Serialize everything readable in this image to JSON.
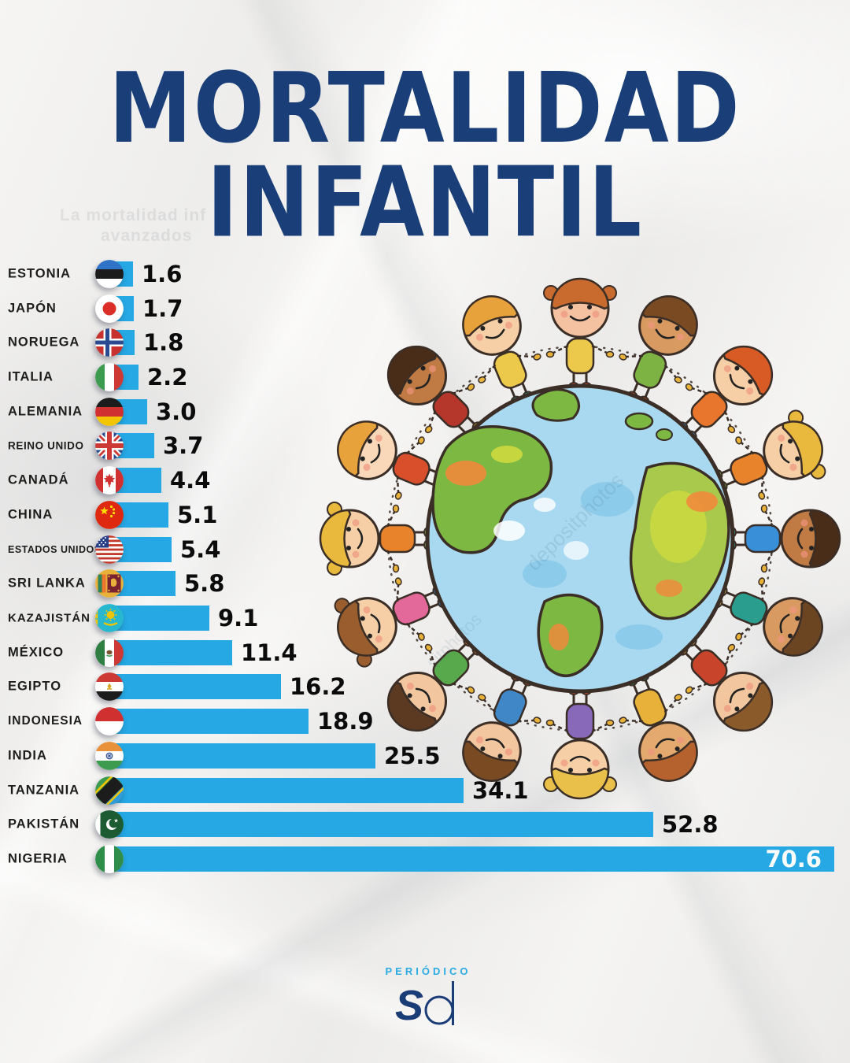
{
  "title": {
    "line1": "MORTALIDAD",
    "line2": "INFANTIL",
    "color": "#1a3f78"
  },
  "background_watermark": {
    "line1": "La mortalidad inf",
    "line2": "avanzados"
  },
  "stock_watermark": {
    "text1": "depositphotos",
    "text2": "sitphotos"
  },
  "chart_data": {
    "type": "bar",
    "orientation": "horizontal",
    "title": "MORTALIDAD INFANTIL",
    "bar_color": "#25a8e3",
    "xlim": [
      0,
      70.6
    ],
    "value_label_color": "#0b0b0b",
    "last_value_label_color": "#ffffff",
    "categories": [
      "ESTONIA",
      "JAPÓN",
      "NORUEGA",
      "ITALIA",
      "ALEMANIA",
      "REINO UNIDO",
      "CANADÁ",
      "CHINA",
      "ESTADOS UNIDOS",
      "SRI LANKA",
      "KAZAJISTÁN",
      "MÉXICO",
      "EGIPTO",
      "INDONESIA",
      "INDIA",
      "TANZANIA",
      "PAKISTÁN",
      "NIGERIA"
    ],
    "values": [
      1.6,
      1.7,
      1.8,
      2.2,
      3.0,
      3.7,
      4.4,
      5.1,
      5.4,
      5.8,
      9.1,
      11.4,
      16.2,
      18.9,
      25.5,
      34.1,
      52.8,
      70.6
    ],
    "rows": [
      {
        "country": "ESTONIA",
        "value": 1.6,
        "label": "1.6",
        "flag": "estonia"
      },
      {
        "country": "JAPÓN",
        "value": 1.7,
        "label": "1.7",
        "flag": "japan"
      },
      {
        "country": "NORUEGA",
        "value": 1.8,
        "label": "1.8",
        "flag": "norway"
      },
      {
        "country": "ITALIA",
        "value": 2.2,
        "label": "2.2",
        "flag": "italy"
      },
      {
        "country": "ALEMANIA",
        "value": 3.0,
        "label": "3.0",
        "flag": "germany"
      },
      {
        "country": "REINO UNIDO",
        "value": 3.7,
        "label": "3.7",
        "flag": "uk"
      },
      {
        "country": "CANADÁ",
        "value": 4.4,
        "label": "4.4",
        "flag": "canada"
      },
      {
        "country": "CHINA",
        "value": 5.1,
        "label": "5.1",
        "flag": "china"
      },
      {
        "country": "ESTADOS UNIDOS",
        "value": 5.4,
        "label": "5.4",
        "flag": "usa"
      },
      {
        "country": "SRI LANKA",
        "value": 5.8,
        "label": "5.8",
        "flag": "sri-lanka"
      },
      {
        "country": "KAZAJISTÁN",
        "value": 9.1,
        "label": "9.1",
        "flag": "kazakhstan"
      },
      {
        "country": "MÉXICO",
        "value": 11.4,
        "label": "11.4",
        "flag": "mexico"
      },
      {
        "country": "EGIPTO",
        "value": 16.2,
        "label": "16.2",
        "flag": "egypt"
      },
      {
        "country": "INDONESIA",
        "value": 18.9,
        "label": "18.9",
        "flag": "indonesia"
      },
      {
        "country": "INDIA",
        "value": 25.5,
        "label": "25.5",
        "flag": "india"
      },
      {
        "country": "TANZANIA",
        "value": 34.1,
        "label": "34.1",
        "flag": "tanzania"
      },
      {
        "country": "PAKISTÁN",
        "value": 52.8,
        "label": "52.8",
        "flag": "pakistan"
      },
      {
        "country": "NIGERIA",
        "value": 70.6,
        "label": "70.6",
        "flag": "nigeria"
      }
    ]
  },
  "footer": {
    "brand": "PERIÓDICO",
    "brand_color": "#2aabe3",
    "mark": "Sd",
    "mark_color": "#1b3d77"
  },
  "illustration": {
    "globe": {
      "ocean": "#a9d9f0",
      "ocean_deep": "#8ccbe9",
      "land_green": "#7db843",
      "land_lime": "#cdd93f",
      "land_orange": "#ef8a3c",
      "outline": "#3a2e26",
      "cloud": "#ffffff"
    },
    "kids": [
      {
        "skin": "#f4c2a0",
        "hair": "#c96a2e",
        "shirt": "#ecc94b",
        "shoe": "#d94f2b",
        "buns": true
      },
      {
        "skin": "#d99a62",
        "hair": "#7a4a22",
        "shirt": "#7cb342",
        "shoe": "#d94f2b",
        "buns": false
      },
      {
        "skin": "#f6cfa6",
        "hair": "#d85a25",
        "shirt": "#e8762c",
        "shoe": "#3a8fd9",
        "buns": false
      },
      {
        "skin": "#f6cfa6",
        "hair": "#e8b93c",
        "shirt": "#e8832c",
        "shoe": "#7cb342",
        "buns": true
      },
      {
        "skin": "#c07a44",
        "hair": "#4a2d18",
        "shirt": "#3a8fd9",
        "shoe": "#2a9d8f",
        "buns": false
      },
      {
        "skin": "#d99a62",
        "hair": "#6b4522",
        "shirt": "#2a9d8f",
        "shoe": "#ecc94b",
        "buns": false
      },
      {
        "skin": "#f2c69e",
        "hair": "#8a5a2b",
        "shirt": "#c8452c",
        "shoe": "#e8b23a",
        "buns": false
      },
      {
        "skin": "#e3a96e",
        "hair": "#b5622f",
        "shirt": "#e8b23a",
        "shoe": "#2f855a",
        "buns": false
      },
      {
        "skin": "#f6cfa6",
        "hair": "#e8c04a",
        "shirt": "#8868b8",
        "shoe": "#d94f2b",
        "buns": true
      },
      {
        "skin": "#f2c69e",
        "hair": "#7a4a22",
        "shirt": "#3f87c7",
        "shoe": "#d94f2b",
        "buns": false
      },
      {
        "skin": "#f2c69e",
        "hair": "#5b3a21",
        "shirt": "#58a84c",
        "shoe": "#e8762c",
        "buns": false
      },
      {
        "skin": "#f6cfa6",
        "hair": "#9a5d2e",
        "shirt": "#e2699a",
        "shoe": "#3a8fd9",
        "buns": true
      },
      {
        "skin": "#f6cfa6",
        "hair": "#e8b93c",
        "shirt": "#e8832c",
        "shoe": "#7cb342",
        "buns": true
      },
      {
        "skin": "#f8d8b8",
        "hair": "#e8a23c",
        "shirt": "#d94f2b",
        "shoe": "#3a8fd9",
        "buns": false
      },
      {
        "skin": "#c07a44",
        "hair": "#4a2d18",
        "shirt": "#b5362a",
        "shoe": "#e8b23a",
        "buns": false
      },
      {
        "skin": "#f6cfa6",
        "hair": "#e8a23c",
        "shirt": "#ecc94b",
        "shoe": "#2a9d8f",
        "buns": false
      }
    ]
  }
}
